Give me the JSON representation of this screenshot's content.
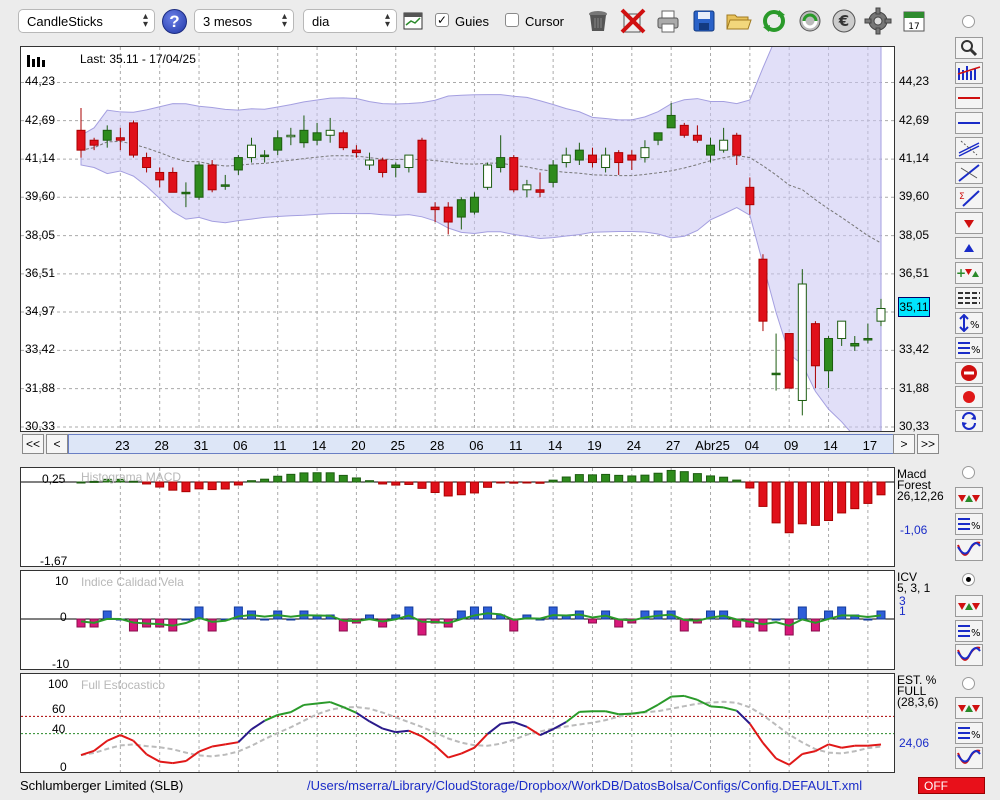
{
  "toolbar": {
    "chart_type": "CandleSticks",
    "period": "3 mesos",
    "interval": "dia",
    "guides_checked": true,
    "guides_label": "Guies",
    "cursor_checked": false,
    "cursor_label": "Cursor",
    "help_label": "?"
  },
  "icons": [
    "calendar-table-icon",
    "trash-icon",
    "delete-icon",
    "print-icon",
    "save-icon",
    "open-folder-icon",
    "refresh-icon",
    "sync-icon",
    "euro-icon",
    "gear-icon",
    "calendar-icon"
  ],
  "price_chart": {
    "last_label": "Last: 35.11 - 17/04/25",
    "y_ticks": [
      "44,23",
      "42,69",
      "41,14",
      "39,60",
      "38,05",
      "36,51",
      "34,97",
      "33,42",
      "31,88",
      "30,33"
    ],
    "current_price": "35,11",
    "date_labels": [
      "23",
      "28",
      "31",
      "06",
      "11",
      "14",
      "20",
      "25",
      "28",
      "06",
      "11",
      "14",
      "19",
      "24",
      "27",
      "Abr25",
      "04",
      "09",
      "14",
      "17"
    ],
    "nav_first": "<<",
    "nav_prev": "<",
    "nav_next": ">",
    "nav_last": ">>"
  },
  "chart_data": {
    "type": "candlestick",
    "ymin": 30.33,
    "ymax": 45.5,
    "candles": [
      [
        42.3,
        43.2,
        41.2,
        41.5
      ],
      [
        41.9,
        42.0,
        41.5,
        41.7
      ],
      [
        41.9,
        42.5,
        41.6,
        42.3
      ],
      [
        42.0,
        42.4,
        41.5,
        41.9
      ],
      [
        42.6,
        42.7,
        41.2,
        41.3
      ],
      [
        41.2,
        41.4,
        40.6,
        40.8
      ],
      [
        40.6,
        40.8,
        40.0,
        40.3
      ],
      [
        40.6,
        40.8,
        39.8,
        39.8
      ],
      [
        39.8,
        40.2,
        39.2,
        39.8
      ],
      [
        39.6,
        41.0,
        39.5,
        40.9
      ],
      [
        40.9,
        41.1,
        39.8,
        39.9
      ],
      [
        40.1,
        40.5,
        39.9,
        40.1
      ],
      [
        40.7,
        41.3,
        40.5,
        41.2
      ],
      [
        41.2,
        42.0,
        41.0,
        41.7
      ],
      [
        41.3,
        41.5,
        41.0,
        41.3
      ],
      [
        41.5,
        42.3,
        41.3,
        42.0
      ],
      [
        42.1,
        42.4,
        41.7,
        42.1
      ],
      [
        41.8,
        42.9,
        41.6,
        42.3
      ],
      [
        41.9,
        42.6,
        41.7,
        42.2
      ],
      [
        42.1,
        42.8,
        41.8,
        42.3
      ],
      [
        42.2,
        42.3,
        41.5,
        41.6
      ],
      [
        41.5,
        41.7,
        41.2,
        41.4
      ],
      [
        40.9,
        41.4,
        40.7,
        41.1
      ],
      [
        41.1,
        41.2,
        40.4,
        40.6
      ],
      [
        40.8,
        41.0,
        40.4,
        40.9
      ],
      [
        40.8,
        41.3,
        40.6,
        41.3
      ],
      [
        41.9,
        42.0,
        39.8,
        39.8
      ],
      [
        39.2,
        39.4,
        38.6,
        39.1
      ],
      [
        39.2,
        39.4,
        38.1,
        38.6
      ],
      [
        38.8,
        39.6,
        38.3,
        39.5
      ],
      [
        39.0,
        39.8,
        38.9,
        39.6
      ],
      [
        40.0,
        41.0,
        39.9,
        40.9
      ],
      [
        40.8,
        42.1,
        40.6,
        41.2
      ],
      [
        41.2,
        41.3,
        39.8,
        39.9
      ],
      [
        39.9,
        40.3,
        39.6,
        40.1
      ],
      [
        39.9,
        40.6,
        39.6,
        39.8
      ],
      [
        40.2,
        41.1,
        40.0,
        40.9
      ],
      [
        41.0,
        41.6,
        40.8,
        41.3
      ],
      [
        41.1,
        41.8,
        40.9,
        41.5
      ],
      [
        41.3,
        41.6,
        40.8,
        41.0
      ],
      [
        40.8,
        41.6,
        40.6,
        41.3
      ],
      [
        41.4,
        41.5,
        40.5,
        41.0
      ],
      [
        41.3,
        41.5,
        40.7,
        41.1
      ],
      [
        41.2,
        41.9,
        41.0,
        41.6
      ],
      [
        41.9,
        42.2,
        41.7,
        42.2
      ],
      [
        42.4,
        43.4,
        42.4,
        42.9
      ],
      [
        42.5,
        42.6,
        42.0,
        42.1
      ],
      [
        42.1,
        42.5,
        41.8,
        41.9
      ],
      [
        41.3,
        42.0,
        41.0,
        41.7
      ],
      [
        41.5,
        42.4,
        41.4,
        41.9
      ],
      [
        42.1,
        42.2,
        40.9,
        41.3
      ],
      [
        40.0,
        40.4,
        38.9,
        39.3
      ],
      [
        37.1,
        37.3,
        34.2,
        34.6
      ],
      [
        32.5,
        34.1,
        31.8,
        32.5
      ],
      [
        34.1,
        34.1,
        31.9,
        31.9
      ],
      [
        31.4,
        36.7,
        30.8,
        36.1
      ],
      [
        34.5,
        34.6,
        31.9,
        32.8
      ],
      [
        32.6,
        34.0,
        31.9,
        33.9
      ],
      [
        33.9,
        34.6,
        33.6,
        34.6
      ],
      [
        33.6,
        34.0,
        33.4,
        33.7
      ],
      [
        33.9,
        34.5,
        33.7,
        33.9
      ],
      [
        34.6,
        35.5,
        34.4,
        35.11
      ]
    ]
  },
  "macd_panel": {
    "title": "Histograma MACD",
    "y_top": "0,25",
    "y_bottom": "-1,67",
    "right_title": "Macd",
    "right_sub1": "Forest",
    "right_sub2": "26,12,26",
    "right_value": "-1,06"
  },
  "icv_panel": {
    "title": "Indice Calidad Vela",
    "y_top": "10",
    "y_zero": "0",
    "y_bottom": "-10",
    "right_title": "ICV",
    "right_params": "5, 3, 1",
    "right_v1": "3",
    "right_v2": "1"
  },
  "stoch_panel": {
    "title": "Full Estocastico",
    "y_100": "100",
    "y_60": "60",
    "y_40": "40",
    "y_0": "0",
    "right_title": "EST. %",
    "right_sub1": "FULL",
    "right_sub2": "(28,3,6)",
    "right_value": "24,06"
  },
  "status_bar": {
    "company": "Schlumberger Limited (SLB)",
    "config_path": "/Users/mserra/Library/CloudStorage/Dropbox/WorkDB/DatosBolsa/Configs/Config.DEFAULT.xml",
    "off_label": "OFF"
  },
  "colors": {
    "up": "#2e8b1c",
    "down": "#e0101a",
    "band": "#c9c4f3",
    "icv_pos": "#2e5fd9",
    "icv_neg": "#d8187a"
  }
}
